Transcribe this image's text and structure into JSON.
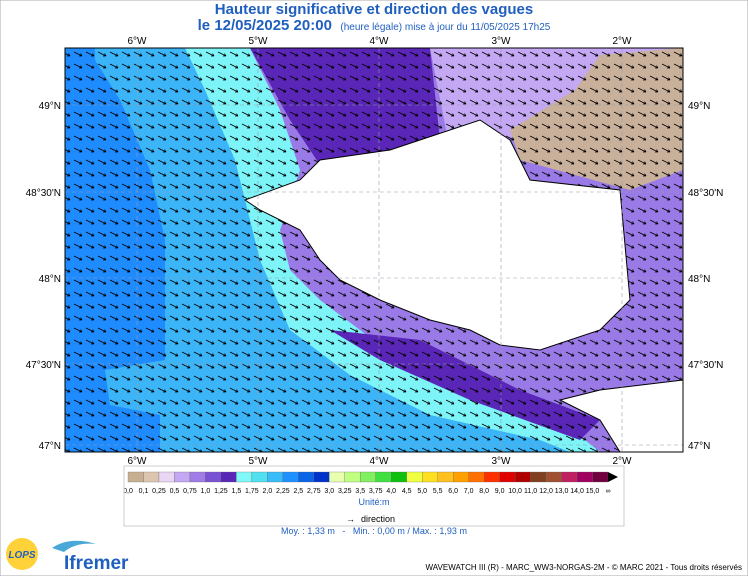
{
  "header": {
    "title": "Hauteur significative et direction des vagues",
    "date": "le 12/05/2025 20:00",
    "note": "(heure légale) mise à jour du 11/05/2025 17h25"
  },
  "map": {
    "lon_labels": [
      "6°W",
      "5°W",
      "4°W",
      "3°W",
      "2°W"
    ],
    "lat_labels": [
      "49°N",
      "48°30'N",
      "48°N",
      "47°30'N",
      "47°N"
    ]
  },
  "legend": {
    "labels": [
      "0,0",
      "0,1",
      "0,25",
      "0,5",
      "0,75",
      "1,0",
      "1,25",
      "1,5",
      "1,75",
      "2,0",
      "2,25",
      "2,5",
      "2,75",
      "3,0",
      "3,25",
      "3,5",
      "3,75",
      "4,0",
      "4,5",
      "5,0",
      "5,5",
      "6,0",
      "7,0",
      "8,0",
      "9,0",
      "10,0",
      "11,0",
      "12,0",
      "13,0",
      "14,0",
      "15,0",
      "∞"
    ],
    "colors": [
      "#c9af91",
      "#dcc6b0",
      "#e8d6f4",
      "#c4a8f4",
      "#9f7ce6",
      "#7a52d4",
      "#5a26b8",
      "#7ff8f8",
      "#50e0f0",
      "#38bdf8",
      "#1e90ff",
      "#0a64e8",
      "#0033cc",
      "#e8ffb0",
      "#c0ff80",
      "#80f060",
      "#40e040",
      "#10c010",
      "#f0ff40",
      "#ffe020",
      "#ffc020",
      "#ffa000",
      "#ff7000",
      "#ff3000",
      "#e00000",
      "#b00000",
      "#804020",
      "#a05030",
      "#c02060",
      "#a00060",
      "#700040"
    ],
    "unit": "Unité:m",
    "direction": "direction"
  },
  "stats": "Moy. : 1,33 m   -   Min. : 0,00 m / Max. : 1,93 m",
  "footer": "WAVEWATCH III (R) - MARC_WW3-NORGAS-2M - © MARC 2021 - Tous droits réservés",
  "logos": [
    "LOPS",
    "Ifremer"
  ]
}
